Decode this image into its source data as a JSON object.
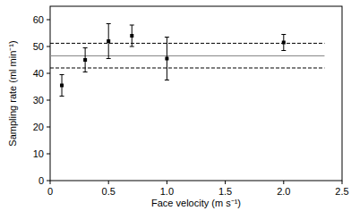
{
  "chart_data": {
    "type": "scatter",
    "x_label": "Face velocity (m s⁻¹)",
    "y_label": "Sampling rate (ml min⁻¹)",
    "x": [
      0.1,
      0.3,
      0.5,
      0.7,
      1.0,
      2.0
    ],
    "values": [
      35.5,
      45,
      52,
      54,
      45.5,
      51.5
    ],
    "errors": [
      4,
      4.5,
      6.5,
      4,
      8,
      3
    ],
    "color": "#000000",
    "marker": "square",
    "xlim": [
      0,
      2.5
    ],
    "xticks": [
      0,
      {
        "value": 0.5,
        "label": "0.5"
      },
      {
        "value": 1,
        "label": "1.0"
      },
      {
        "value": 1.5,
        "label": "1.5"
      },
      {
        "value": 2,
        "label": "2.0"
      },
      {
        "value": 2.5,
        "label": "2.5"
      }
    ],
    "ylim": [
      0,
      65
    ],
    "yticks": [
      0,
      10,
      20,
      30,
      40,
      50,
      60
    ],
    "grid": false,
    "lines": [
      {
        "y": 46.5,
        "x": [
          0,
          2.35
        ],
        "line_style": "solid",
        "color": "#888888"
      },
      {
        "y": 51.2,
        "x": [
          0,
          2.35
        ],
        "line_style": "dashed",
        "color": "#000000"
      },
      {
        "y": 42,
        "x": [
          0,
          2.35
        ],
        "line_style": "dashed",
        "color": "#000000"
      }
    ]
  }
}
